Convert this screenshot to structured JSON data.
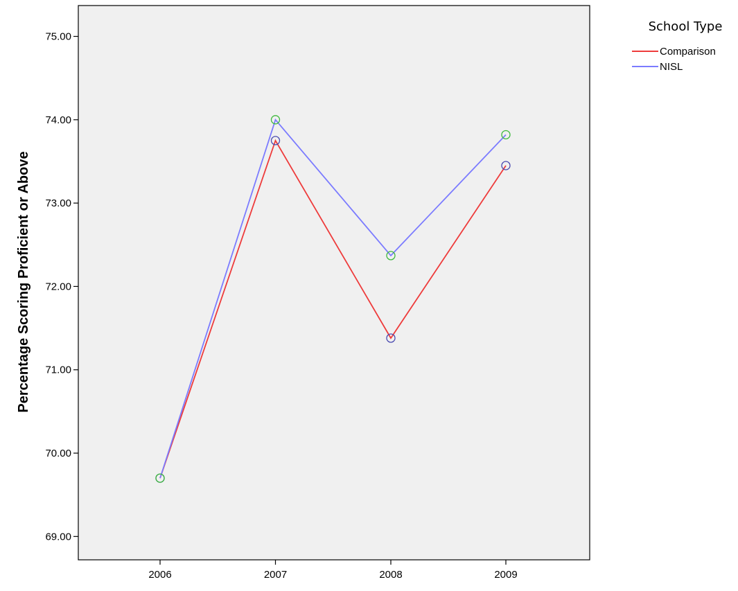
{
  "chart_data": {
    "type": "line",
    "categories": [
      "2006",
      "2007",
      "2008",
      "2009"
    ],
    "series": [
      {
        "name": "Comparison",
        "values": [
          69.7,
          73.75,
          71.38,
          73.45
        ],
        "color": "#ee3b3b",
        "marker_color": "#4a4ab0"
      },
      {
        "name": "NISL",
        "values": [
          69.7,
          74.0,
          72.37,
          73.82
        ],
        "color": "#7b7bff",
        "marker_color": "#3cb83c"
      }
    ],
    "ylabel": "Percentage Scoring Proficient or Above",
    "xlabel": "",
    "ylim": [
      68.72,
      75.37
    ],
    "yticks": [
      69.0,
      70.0,
      71.0,
      72.0,
      73.0,
      74.0,
      75.0
    ],
    "ytick_labels": [
      "69.00",
      "70.00",
      "71.00",
      "72.00",
      "73.00",
      "74.00",
      "75.00"
    ],
    "legend": {
      "title": "School Type",
      "placement": "right"
    },
    "grid": false,
    "plot_background": "#f0f0f0"
  }
}
